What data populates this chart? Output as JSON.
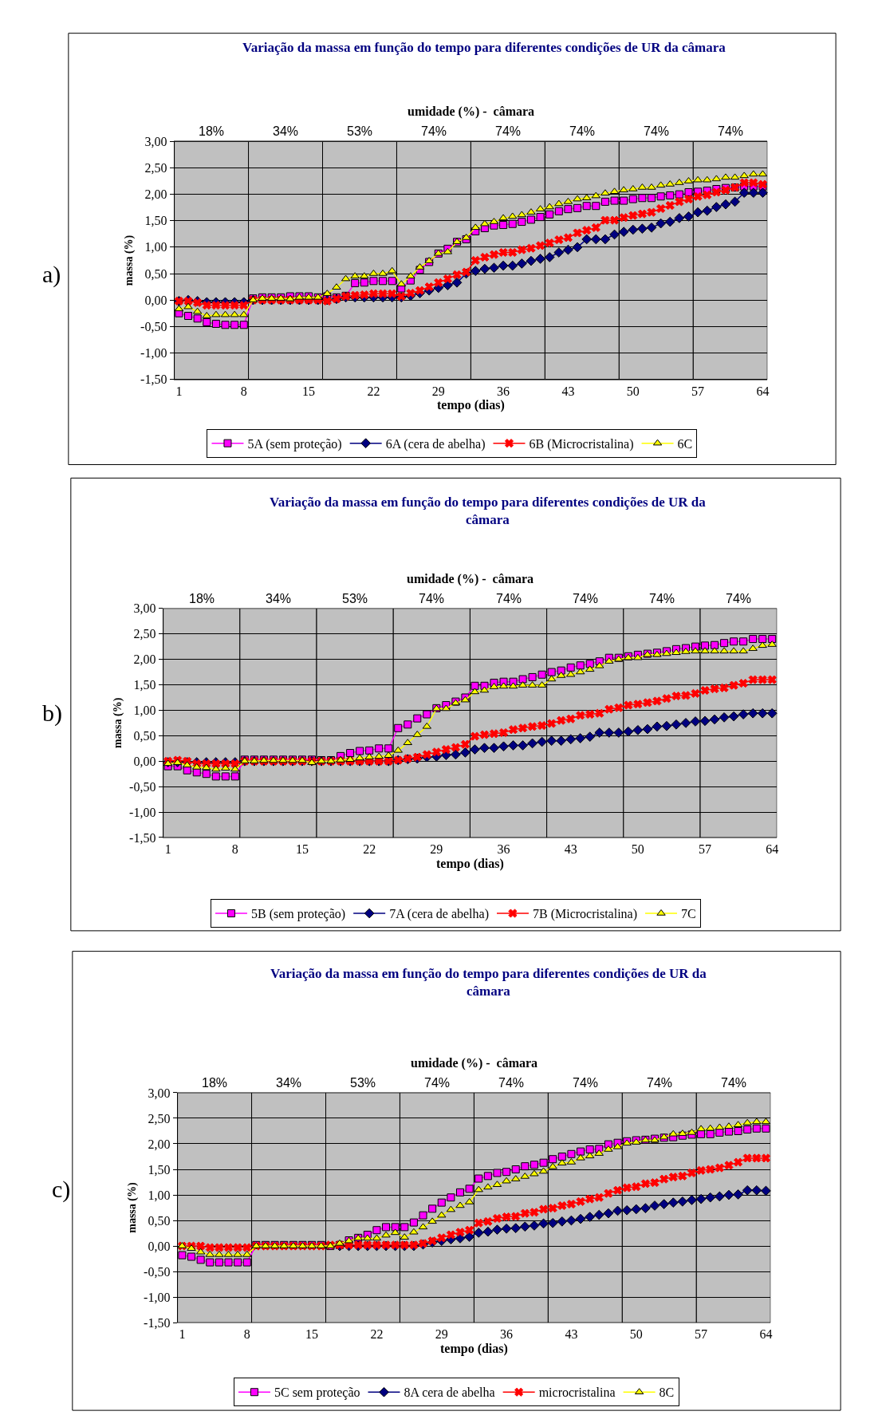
{
  "chart_data": [
    {
      "type": "line",
      "title": "Variação da massa em função do tempo para diferentes condições de UR da câmara",
      "xlabel": "tempo (dias)",
      "ylabel": "massa (%)",
      "annotations": [
        "a)",
        "umidade (%) -  câmara"
      ],
      "x": [
        1,
        2,
        3,
        4,
        5,
        6,
        7,
        8,
        9,
        10,
        11,
        12,
        13,
        14,
        15,
        16,
        17,
        18,
        19,
        20,
        21,
        22,
        23,
        24,
        25,
        26,
        27,
        28,
        29,
        30,
        31,
        32,
        33,
        34,
        35,
        36,
        37,
        38,
        39,
        40,
        41,
        42,
        43,
        44,
        45,
        46,
        47,
        48,
        49,
        50,
        51,
        52,
        53,
        54,
        55,
        56,
        57,
        58,
        59,
        60,
        61,
        62,
        63,
        64
      ],
      "xlim": [
        0.5,
        64.5
      ],
      "xticks": [
        1,
        8,
        15,
        22,
        29,
        36,
        43,
        50,
        57,
        64
      ],
      "bands": [
        {
          "axis": "x",
          "from": 0.5,
          "to": 8.5,
          "label": "18%"
        },
        {
          "axis": "x",
          "from": 8.5,
          "to": 16.5,
          "label": "34%"
        },
        {
          "axis": "x",
          "from": 16.5,
          "to": 24.5,
          "label": "53%"
        },
        {
          "axis": "x",
          "from": 24.5,
          "to": 32.5,
          "label": "74%"
        },
        {
          "axis": "x",
          "from": 32.5,
          "to": 40.5,
          "label": "74%"
        },
        {
          "axis": "x",
          "from": 40.5,
          "to": 48.5,
          "label": "74%"
        },
        {
          "axis": "x",
          "from": 48.5,
          "to": 56.5,
          "label": "74%"
        },
        {
          "axis": "x",
          "from": 56.5,
          "to": 64.5,
          "label": "74%"
        }
      ],
      "ylim": [
        -1.5,
        3.0
      ],
      "yticks": [
        {
          "value": 3.0,
          "label": "3,00"
        },
        {
          "value": 2.5,
          "label": "2,50"
        },
        {
          "value": 2.0,
          "label": "2,00"
        },
        {
          "value": 1.5,
          "label": "1,50"
        },
        {
          "value": 1.0,
          "label": "1,00"
        },
        {
          "value": 0.5,
          "label": "0,50"
        },
        {
          "value": 0.0,
          "label": "0,00"
        },
        {
          "value": -0.5,
          "label": "-0,50"
        },
        {
          "value": -1.0,
          "label": "-1,00"
        },
        {
          "value": -1.5,
          "label": "-1,50"
        }
      ],
      "grid": "y",
      "legend": "bottom",
      "line_style": "solid",
      "series": [
        {
          "name": "5A (sem proteção)",
          "color": "#ff00ff",
          "marker": "square",
          "values": [
            -0.25,
            -0.3,
            -0.35,
            -0.42,
            -0.45,
            -0.47,
            -0.47,
            -0.47,
            0.03,
            0.05,
            0.05,
            0.05,
            0.07,
            0.07,
            0.07,
            0.05,
            0.07,
            0.05,
            0.08,
            0.32,
            0.33,
            0.36,
            0.36,
            0.36,
            0.22,
            0.37,
            0.57,
            0.72,
            0.88,
            0.97,
            1.1,
            1.15,
            1.3,
            1.36,
            1.41,
            1.42,
            1.44,
            1.48,
            1.52,
            1.57,
            1.62,
            1.68,
            1.72,
            1.74,
            1.78,
            1.78,
            1.86,
            1.88,
            1.88,
            1.91,
            1.93,
            1.93,
            1.96,
            1.98,
            2.0,
            2.04,
            2.05,
            2.07,
            2.1,
            2.12,
            2.13,
            2.15,
            2.15,
            2.15
          ]
        },
        {
          "name": "6A (cera de abelha)",
          "color": "#000080",
          "marker": "diamond",
          "values": [
            -0.02,
            0.0,
            -0.02,
            -0.04,
            -0.04,
            -0.04,
            -0.04,
            -0.04,
            0.0,
            0.0,
            0.0,
            0.0,
            0.0,
            0.0,
            0.0,
            0.0,
            0.0,
            0.02,
            0.05,
            0.05,
            0.05,
            0.05,
            0.05,
            0.05,
            0.05,
            0.08,
            0.13,
            0.18,
            0.23,
            0.28,
            0.33,
            0.5,
            0.55,
            0.59,
            0.61,
            0.65,
            0.65,
            0.69,
            0.74,
            0.78,
            0.81,
            0.9,
            0.95,
            1.0,
            1.15,
            1.15,
            1.15,
            1.24,
            1.29,
            1.33,
            1.35,
            1.37,
            1.45,
            1.48,
            1.55,
            1.58,
            1.66,
            1.69,
            1.76,
            1.81,
            1.86,
            2.03,
            2.03,
            2.03
          ]
        },
        {
          "name": "6B (Microcristalina)",
          "color": "#ff0000",
          "marker": "cross",
          "values": [
            -0.02,
            -0.02,
            -0.05,
            -0.1,
            -0.1,
            -0.1,
            -0.1,
            -0.1,
            0.0,
            0.0,
            0.0,
            0.0,
            0.0,
            0.0,
            0.0,
            0.0,
            -0.02,
            0.02,
            0.07,
            0.09,
            0.1,
            0.12,
            0.12,
            0.12,
            0.07,
            0.13,
            0.18,
            0.25,
            0.33,
            0.4,
            0.48,
            0.53,
            0.75,
            0.81,
            0.86,
            0.9,
            0.9,
            0.95,
            0.98,
            1.03,
            1.08,
            1.14,
            1.18,
            1.27,
            1.32,
            1.37,
            1.51,
            1.51,
            1.56,
            1.6,
            1.63,
            1.66,
            1.73,
            1.79,
            1.86,
            1.91,
            1.96,
            1.99,
            2.04,
            2.08,
            2.13,
            2.22,
            2.22,
            2.19
          ]
        },
        {
          "name": "6C",
          "color": "#ffff00",
          "marker": "triangle",
          "values": [
            -0.17,
            -0.13,
            -0.22,
            -0.3,
            -0.28,
            -0.28,
            -0.28,
            -0.28,
            0.0,
            0.03,
            0.03,
            0.03,
            0.02,
            0.05,
            0.05,
            0.05,
            0.12,
            0.24,
            0.4,
            0.45,
            0.45,
            0.5,
            0.5,
            0.55,
            0.3,
            0.45,
            0.62,
            0.74,
            0.88,
            0.91,
            1.1,
            1.18,
            1.37,
            1.44,
            1.48,
            1.55,
            1.58,
            1.61,
            1.66,
            1.72,
            1.76,
            1.82,
            1.86,
            1.91,
            1.93,
            1.97,
            2.02,
            2.05,
            2.08,
            2.1,
            2.13,
            2.13,
            2.17,
            2.19,
            2.22,
            2.25,
            2.27,
            2.27,
            2.29,
            2.32,
            2.32,
            2.35,
            2.38,
            2.38
          ]
        }
      ]
    },
    {
      "type": "line",
      "title": "Variação da massa em função do tempo para diferentes condições de UR da câmara",
      "xlabel": "tempo (dias)",
      "ylabel": "massa (%)",
      "annotations": [
        "b)",
        "umidade (%) -  câmara"
      ],
      "x": [
        1,
        2,
        3,
        4,
        5,
        6,
        7,
        8,
        9,
        10,
        11,
        12,
        13,
        14,
        15,
        16,
        17,
        18,
        19,
        20,
        21,
        22,
        23,
        24,
        25,
        26,
        27,
        28,
        29,
        30,
        31,
        32,
        33,
        34,
        35,
        36,
        37,
        38,
        39,
        40,
        41,
        42,
        43,
        44,
        45,
        46,
        47,
        48,
        49,
        50,
        51,
        52,
        53,
        54,
        55,
        56,
        57,
        58,
        59,
        60,
        61,
        62,
        63,
        64
      ],
      "xlim": [
        0.5,
        64.5
      ],
      "xticks": [
        1,
        8,
        15,
        22,
        29,
        36,
        43,
        50,
        57,
        64
      ],
      "bands": [
        {
          "axis": "x",
          "from": 0.5,
          "to": 8.5,
          "label": "18%"
        },
        {
          "axis": "x",
          "from": 8.5,
          "to": 16.5,
          "label": "34%"
        },
        {
          "axis": "x",
          "from": 16.5,
          "to": 24.5,
          "label": "53%"
        },
        {
          "axis": "x",
          "from": 24.5,
          "to": 32.5,
          "label": "74%"
        },
        {
          "axis": "x",
          "from": 32.5,
          "to": 40.5,
          "label": "74%"
        },
        {
          "axis": "x",
          "from": 40.5,
          "to": 48.5,
          "label": "74%"
        },
        {
          "axis": "x",
          "from": 48.5,
          "to": 56.5,
          "label": "74%"
        },
        {
          "axis": "x",
          "from": 56.5,
          "to": 64.5,
          "label": "74%"
        }
      ],
      "ylim": [
        -1.5,
        3.0
      ],
      "yticks": [
        {
          "value": 3.0,
          "label": "3,00"
        },
        {
          "value": 2.5,
          "label": "2,50"
        },
        {
          "value": 2.0,
          "label": "2,00"
        },
        {
          "value": 1.5,
          "label": "1,50"
        },
        {
          "value": 1.0,
          "label": "1,00"
        },
        {
          "value": 0.5,
          "label": "0,50"
        },
        {
          "value": 0.0,
          "label": "0,00"
        },
        {
          "value": -0.5,
          "label": "-0,50"
        },
        {
          "value": -1.0,
          "label": "-1,00"
        },
        {
          "value": -1.5,
          "label": "-1,50"
        }
      ],
      "grid": "y",
      "legend": "bottom",
      "line_style": "solid",
      "series": [
        {
          "name": "5B (sem proteção)",
          "color": "#ff00ff",
          "marker": "square",
          "values": [
            -0.1,
            -0.1,
            -0.18,
            -0.22,
            -0.25,
            -0.3,
            -0.3,
            -0.3,
            0.03,
            0.03,
            0.03,
            0.03,
            0.03,
            0.03,
            0.03,
            0.03,
            0.02,
            0.02,
            0.1,
            0.16,
            0.2,
            0.21,
            0.25,
            0.25,
            0.65,
            0.72,
            0.84,
            0.92,
            1.04,
            1.1,
            1.17,
            1.25,
            1.48,
            1.48,
            1.54,
            1.56,
            1.56,
            1.61,
            1.65,
            1.7,
            1.75,
            1.78,
            1.84,
            1.88,
            1.91,
            1.96,
            2.03,
            2.03,
            2.06,
            2.09,
            2.11,
            2.13,
            2.16,
            2.2,
            2.22,
            2.25,
            2.27,
            2.28,
            2.32,
            2.35,
            2.35,
            2.4,
            2.4,
            2.4
          ]
        },
        {
          "name": "7A (cera de abelha)",
          "color": "#000080",
          "marker": "diamond",
          "values": [
            -0.02,
            -0.02,
            -0.02,
            -0.02,
            -0.02,
            -0.02,
            -0.02,
            -0.02,
            0.0,
            0.0,
            0.0,
            0.0,
            0.0,
            0.0,
            0.0,
            0.0,
            0.0,
            0.0,
            0.0,
            0.0,
            0.0,
            0.0,
            0.0,
            0.0,
            0.02,
            0.04,
            0.05,
            0.08,
            0.09,
            0.12,
            0.13,
            0.17,
            0.23,
            0.26,
            0.26,
            0.29,
            0.31,
            0.31,
            0.35,
            0.38,
            0.4,
            0.4,
            0.43,
            0.45,
            0.48,
            0.56,
            0.56,
            0.56,
            0.58,
            0.61,
            0.63,
            0.68,
            0.69,
            0.72,
            0.75,
            0.78,
            0.79,
            0.82,
            0.86,
            0.88,
            0.92,
            0.94,
            0.94,
            0.94
          ]
        },
        {
          "name": "7B (Microcristalina)",
          "color": "#ff0000",
          "marker": "cross",
          "values": [
            0.0,
            0.02,
            0.0,
            -0.05,
            -0.05,
            -0.05,
            -0.05,
            -0.05,
            0.0,
            0.0,
            0.0,
            0.0,
            0.0,
            0.0,
            0.0,
            0.0,
            0.0,
            0.0,
            0.0,
            0.0,
            0.0,
            0.0,
            0.0,
            0.0,
            0.02,
            0.05,
            0.08,
            0.13,
            0.18,
            0.23,
            0.27,
            0.33,
            0.49,
            0.52,
            0.54,
            0.56,
            0.62,
            0.65,
            0.68,
            0.7,
            0.74,
            0.8,
            0.83,
            0.9,
            0.92,
            0.94,
            1.02,
            1.05,
            1.1,
            1.12,
            1.15,
            1.18,
            1.23,
            1.28,
            1.29,
            1.33,
            1.39,
            1.42,
            1.44,
            1.49,
            1.53,
            1.6,
            1.6,
            1.6
          ]
        },
        {
          "name": "7C",
          "color": "#ffff00",
          "marker": "triangle",
          "values": [
            -0.05,
            -0.03,
            -0.08,
            -0.12,
            -0.13,
            -0.16,
            -0.14,
            -0.16,
            0.0,
            0.0,
            0.01,
            0.01,
            0.01,
            0.01,
            0.01,
            -0.03,
            0.0,
            0.0,
            0.02,
            0.03,
            0.06,
            0.08,
            0.09,
            0.11,
            0.21,
            0.36,
            0.52,
            0.68,
            1.03,
            1.03,
            1.14,
            1.2,
            1.36,
            1.39,
            1.46,
            1.47,
            1.47,
            1.49,
            1.49,
            1.49,
            1.61,
            1.68,
            1.7,
            1.75,
            1.8,
            1.87,
            1.96,
            2.0,
            2.03,
            2.03,
            2.09,
            2.09,
            2.11,
            2.13,
            2.15,
            2.16,
            2.16,
            2.16,
            2.16,
            2.16,
            2.16,
            2.21,
            2.27,
            2.29
          ]
        }
      ]
    },
    {
      "type": "line",
      "title": "Variação da massa em função do tempo para diferentes condições de UR da câmara",
      "xlabel": "tempo (dias)",
      "ylabel": "massa (%)",
      "annotations": [
        "c)",
        "umidade (%) -  câmara"
      ],
      "x": [
        1,
        2,
        3,
        4,
        5,
        6,
        7,
        8,
        9,
        10,
        11,
        12,
        13,
        14,
        15,
        16,
        17,
        18,
        19,
        20,
        21,
        22,
        23,
        24,
        25,
        26,
        27,
        28,
        29,
        30,
        31,
        32,
        33,
        34,
        35,
        36,
        37,
        38,
        39,
        40,
        41,
        42,
        43,
        44,
        45,
        46,
        47,
        48,
        49,
        50,
        51,
        52,
        53,
        54,
        55,
        56,
        57,
        58,
        59,
        60,
        61,
        62,
        63,
        64
      ],
      "xlim": [
        0.5,
        64.5
      ],
      "xticks": [
        1,
        8,
        15,
        22,
        29,
        36,
        43,
        50,
        57,
        64
      ],
      "bands": [
        {
          "axis": "x",
          "from": 0.5,
          "to": 8.5,
          "label": "18%"
        },
        {
          "axis": "x",
          "from": 8.5,
          "to": 16.5,
          "label": "34%"
        },
        {
          "axis": "x",
          "from": 16.5,
          "to": 24.5,
          "label": "53%"
        },
        {
          "axis": "x",
          "from": 24.5,
          "to": 32.5,
          "label": "74%"
        },
        {
          "axis": "x",
          "from": 32.5,
          "to": 40.5,
          "label": "74%"
        },
        {
          "axis": "x",
          "from": 40.5,
          "to": 48.5,
          "label": "74%"
        },
        {
          "axis": "x",
          "from": 48.5,
          "to": 56.5,
          "label": "74%"
        },
        {
          "axis": "x",
          "from": 56.5,
          "to": 64.5,
          "label": "74%"
        }
      ],
      "ylim": [
        -1.5,
        3.0
      ],
      "yticks": [
        {
          "value": 3.0,
          "label": "3,00"
        },
        {
          "value": 2.5,
          "label": "2,50"
        },
        {
          "value": 2.0,
          "label": "2,00"
        },
        {
          "value": 1.5,
          "label": "1,50"
        },
        {
          "value": 1.0,
          "label": "1,00"
        },
        {
          "value": 0.5,
          "label": "0,50"
        },
        {
          "value": 0.0,
          "label": "0,00"
        },
        {
          "value": -0.5,
          "label": "-0,50"
        },
        {
          "value": -1.0,
          "label": "-1,00"
        },
        {
          "value": -1.5,
          "label": "-1,50"
        }
      ],
      "grid": "y",
      "legend": "bottom",
      "line_style": "solid",
      "series": [
        {
          "name": "5C sem proteção",
          "color": "#ff00ff",
          "marker": "square",
          "values": [
            -0.18,
            -0.21,
            -0.27,
            -0.32,
            -0.32,
            -0.32,
            -0.32,
            -0.32,
            0.02,
            0.02,
            0.02,
            0.02,
            0.02,
            0.02,
            0.02,
            0.02,
            0.0,
            0.02,
            0.11,
            0.16,
            0.22,
            0.31,
            0.37,
            0.37,
            0.37,
            0.46,
            0.6,
            0.73,
            0.85,
            0.95,
            1.05,
            1.12,
            1.32,
            1.37,
            1.43,
            1.45,
            1.5,
            1.56,
            1.59,
            1.63,
            1.7,
            1.75,
            1.8,
            1.85,
            1.89,
            1.9,
            1.99,
            2.02,
            2.05,
            2.07,
            2.08,
            2.1,
            2.12,
            2.13,
            2.16,
            2.18,
            2.19,
            2.19,
            2.22,
            2.24,
            2.25,
            2.28,
            2.3,
            2.3
          ]
        },
        {
          "name": "8A cera de abelha",
          "color": "#000080",
          "marker": "diamond",
          "values": [
            null,
            null,
            null,
            null,
            null,
            null,
            null,
            null,
            null,
            null,
            null,
            null,
            null,
            null,
            null,
            null,
            null,
            0.0,
            0.0,
            0.0,
            0.0,
            0.0,
            0.0,
            0.0,
            0.0,
            0.0,
            0.03,
            0.07,
            0.1,
            0.13,
            0.15,
            0.18,
            0.26,
            0.28,
            0.32,
            0.34,
            0.35,
            0.38,
            0.4,
            0.44,
            0.45,
            0.48,
            0.5,
            0.53,
            0.57,
            0.61,
            0.64,
            0.69,
            0.7,
            0.72,
            0.74,
            0.79,
            0.82,
            0.85,
            0.87,
            0.9,
            0.92,
            0.95,
            0.97,
            1.0,
            1.01,
            1.09,
            1.09,
            1.08
          ]
        },
        {
          "name": "microcristalina",
          "color": "#ff0000",
          "marker": "cross",
          "values": [
            0.0,
            0.0,
            0.0,
            -0.03,
            -0.03,
            -0.03,
            -0.03,
            -0.03,
            0.0,
            0.0,
            0.0,
            0.0,
            0.0,
            0.0,
            0.0,
            0.0,
            0.02,
            0.02,
            0.02,
            0.02,
            0.02,
            0.02,
            0.02,
            0.02,
            0.02,
            0.02,
            0.05,
            0.1,
            0.16,
            0.22,
            0.27,
            0.31,
            0.45,
            0.48,
            0.54,
            0.57,
            0.58,
            0.64,
            0.66,
            0.72,
            0.74,
            0.79,
            0.82,
            0.87,
            0.92,
            0.95,
            1.03,
            1.09,
            1.14,
            1.16,
            1.22,
            1.24,
            1.31,
            1.35,
            1.37,
            1.43,
            1.48,
            1.5,
            1.53,
            1.58,
            1.64,
            1.72,
            1.72,
            1.72
          ]
        },
        {
          "name": "8C",
          "color": "#ffff00",
          "marker": "triangle",
          "values": [
            0.0,
            -0.05,
            -0.12,
            -0.17,
            -0.17,
            -0.17,
            -0.17,
            -0.17,
            0.0,
            0.0,
            0.0,
            0.0,
            0.0,
            0.0,
            0.0,
            0.0,
            0.0,
            0.05,
            0.1,
            0.15,
            0.15,
            0.15,
            0.21,
            0.26,
            0.17,
            0.27,
            0.37,
            0.48,
            0.6,
            0.71,
            0.79,
            0.86,
            1.1,
            1.15,
            1.2,
            1.27,
            1.31,
            1.36,
            1.41,
            1.46,
            1.55,
            1.62,
            1.64,
            1.72,
            1.76,
            1.81,
            1.89,
            1.94,
            2.01,
            2.03,
            2.07,
            2.07,
            2.13,
            2.19,
            2.2,
            2.22,
            2.29,
            2.3,
            2.32,
            2.34,
            2.37,
            2.41,
            2.43,
            2.43
          ]
        }
      ]
    }
  ]
}
